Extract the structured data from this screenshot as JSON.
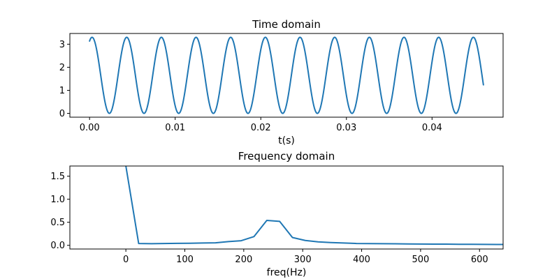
{
  "series_color": "#1f77b4",
  "chart_data": [
    {
      "type": "line",
      "title": "Time domain",
      "xlabel": "t(s)",
      "ylabel": "",
      "xlim": [
        -0.0023,
        0.0483
      ],
      "ylim": [
        -0.165,
        3.465
      ],
      "xticks": [
        0.0,
        0.01,
        0.02,
        0.03,
        0.04
      ],
      "xtick_labels": [
        "0.00",
        "0.01",
        "0.02",
        "0.03",
        "0.04"
      ],
      "yticks": [
        0,
        1,
        2,
        3
      ],
      "ytick_labels": [
        "0",
        "1",
        "2",
        "3"
      ],
      "grid": false,
      "signal": {
        "offset": 1.65,
        "amplitude": 1.65,
        "frequency_hz": 247,
        "phase_rad": 1.12,
        "t_start": 0.0,
        "t_end": 0.046
      }
    },
    {
      "type": "line",
      "title": "Frequency domain",
      "xlabel": "freq(Hz)",
      "ylabel": "",
      "xlim": [
        -95,
        640
      ],
      "ylim": [
        -0.08,
        1.72
      ],
      "xticks": [
        0,
        100,
        200,
        300,
        400,
        500,
        600
      ],
      "xtick_labels": [
        "0",
        "100",
        "200",
        "300",
        "400",
        "500",
        "600"
      ],
      "yticks": [
        0.0,
        0.5,
        1.0,
        1.5
      ],
      "ytick_labels": [
        "0.0",
        "0.5",
        "1.0",
        "1.5"
      ],
      "grid": false,
      "x": [
        0,
        21.7,
        43.5,
        65.2,
        87,
        108.7,
        130.4,
        152.2,
        173.9,
        195.7,
        217.4,
        239.1,
        260.9,
        282.6,
        304.3,
        326.1,
        347.8,
        369.6,
        391.3,
        413,
        434.8,
        456.5,
        478.3,
        500,
        521.7,
        543.5,
        565.2,
        587,
        608.7,
        630.4,
        652.2
      ],
      "y": [
        1.72,
        0.04,
        0.035,
        0.04,
        0.042,
        0.045,
        0.05,
        0.055,
        0.08,
        0.1,
        0.19,
        0.54,
        0.52,
        0.17,
        0.105,
        0.075,
        0.06,
        0.05,
        0.04,
        0.038,
        0.036,
        0.033,
        0.03,
        0.028,
        0.026,
        0.025,
        0.022,
        0.022,
        0.02,
        0.019,
        0.018
      ]
    }
  ]
}
